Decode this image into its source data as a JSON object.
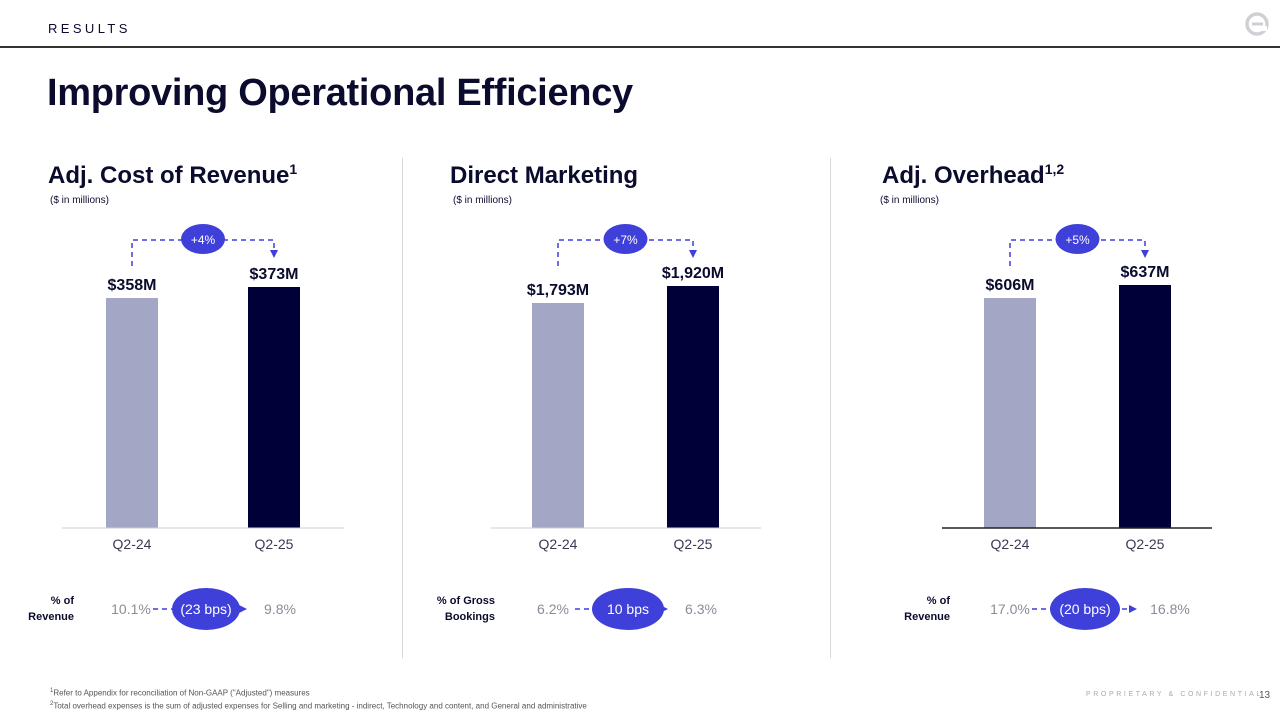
{
  "header": {
    "section": "RESULTS",
    "title": "Improving Operational Efficiency"
  },
  "colors": {
    "navy": "#000038",
    "lavender": "#a3a6c4",
    "accent": "#3f3fd9",
    "text": "#0b0b2e",
    "muted": "#8c8c99"
  },
  "chart_data": [
    {
      "type": "bar",
      "title": "Adj. Cost of Revenue",
      "title_sup": "1",
      "subtitle": "($ in millions)",
      "categories": [
        "Q2-24",
        "Q2-25"
      ],
      "values": [
        358,
        373
      ],
      "value_labels": [
        "$358M",
        "$373M"
      ],
      "change_label": "+4%",
      "ratio_label_lines": [
        "% of",
        "Revenue"
      ],
      "ratio_from": "10.1%",
      "ratio_change": "(23 bps)",
      "ratio_to": "9.8%"
    },
    {
      "type": "bar",
      "title": "Direct Marketing",
      "title_sup": "",
      "subtitle": "($ in millions)",
      "categories": [
        "Q2-24",
        "Q2-25"
      ],
      "values": [
        1793,
        1920
      ],
      "value_labels": [
        "$1,793M",
        "$1,920M"
      ],
      "change_label": "+7%",
      "ratio_label_lines": [
        "% of  Gross",
        "Bookings"
      ],
      "ratio_from": "6.2%",
      "ratio_change": "10 bps",
      "ratio_to": "6.3%"
    },
    {
      "type": "bar",
      "title": "Adj. Overhead",
      "title_sup": "1,2",
      "subtitle": "($ in millions)",
      "categories": [
        "Q2-24",
        "Q2-25"
      ],
      "values": [
        606,
        637
      ],
      "value_labels": [
        "$606M",
        "$637M"
      ],
      "change_label": "+5%",
      "ratio_label_lines": [
        "% of",
        "Revenue"
      ],
      "ratio_from": "17.0%",
      "ratio_change": "(20 bps)",
      "ratio_to": "16.8%"
    }
  ],
  "footer": {
    "footnote1_sup": "1",
    "footnote1": "Refer to Appendix for reconciliation of Non-GAAP (\"Adjusted\") measures",
    "footnote2_sup": "2",
    "footnote2": "Total overhead expenses is the sum of adjusted expenses for Selling and marketing - indirect, Technology and content, and General and administrative",
    "confidential": "PROPRIETARY & CONFIDENTIAL",
    "page": "13"
  }
}
